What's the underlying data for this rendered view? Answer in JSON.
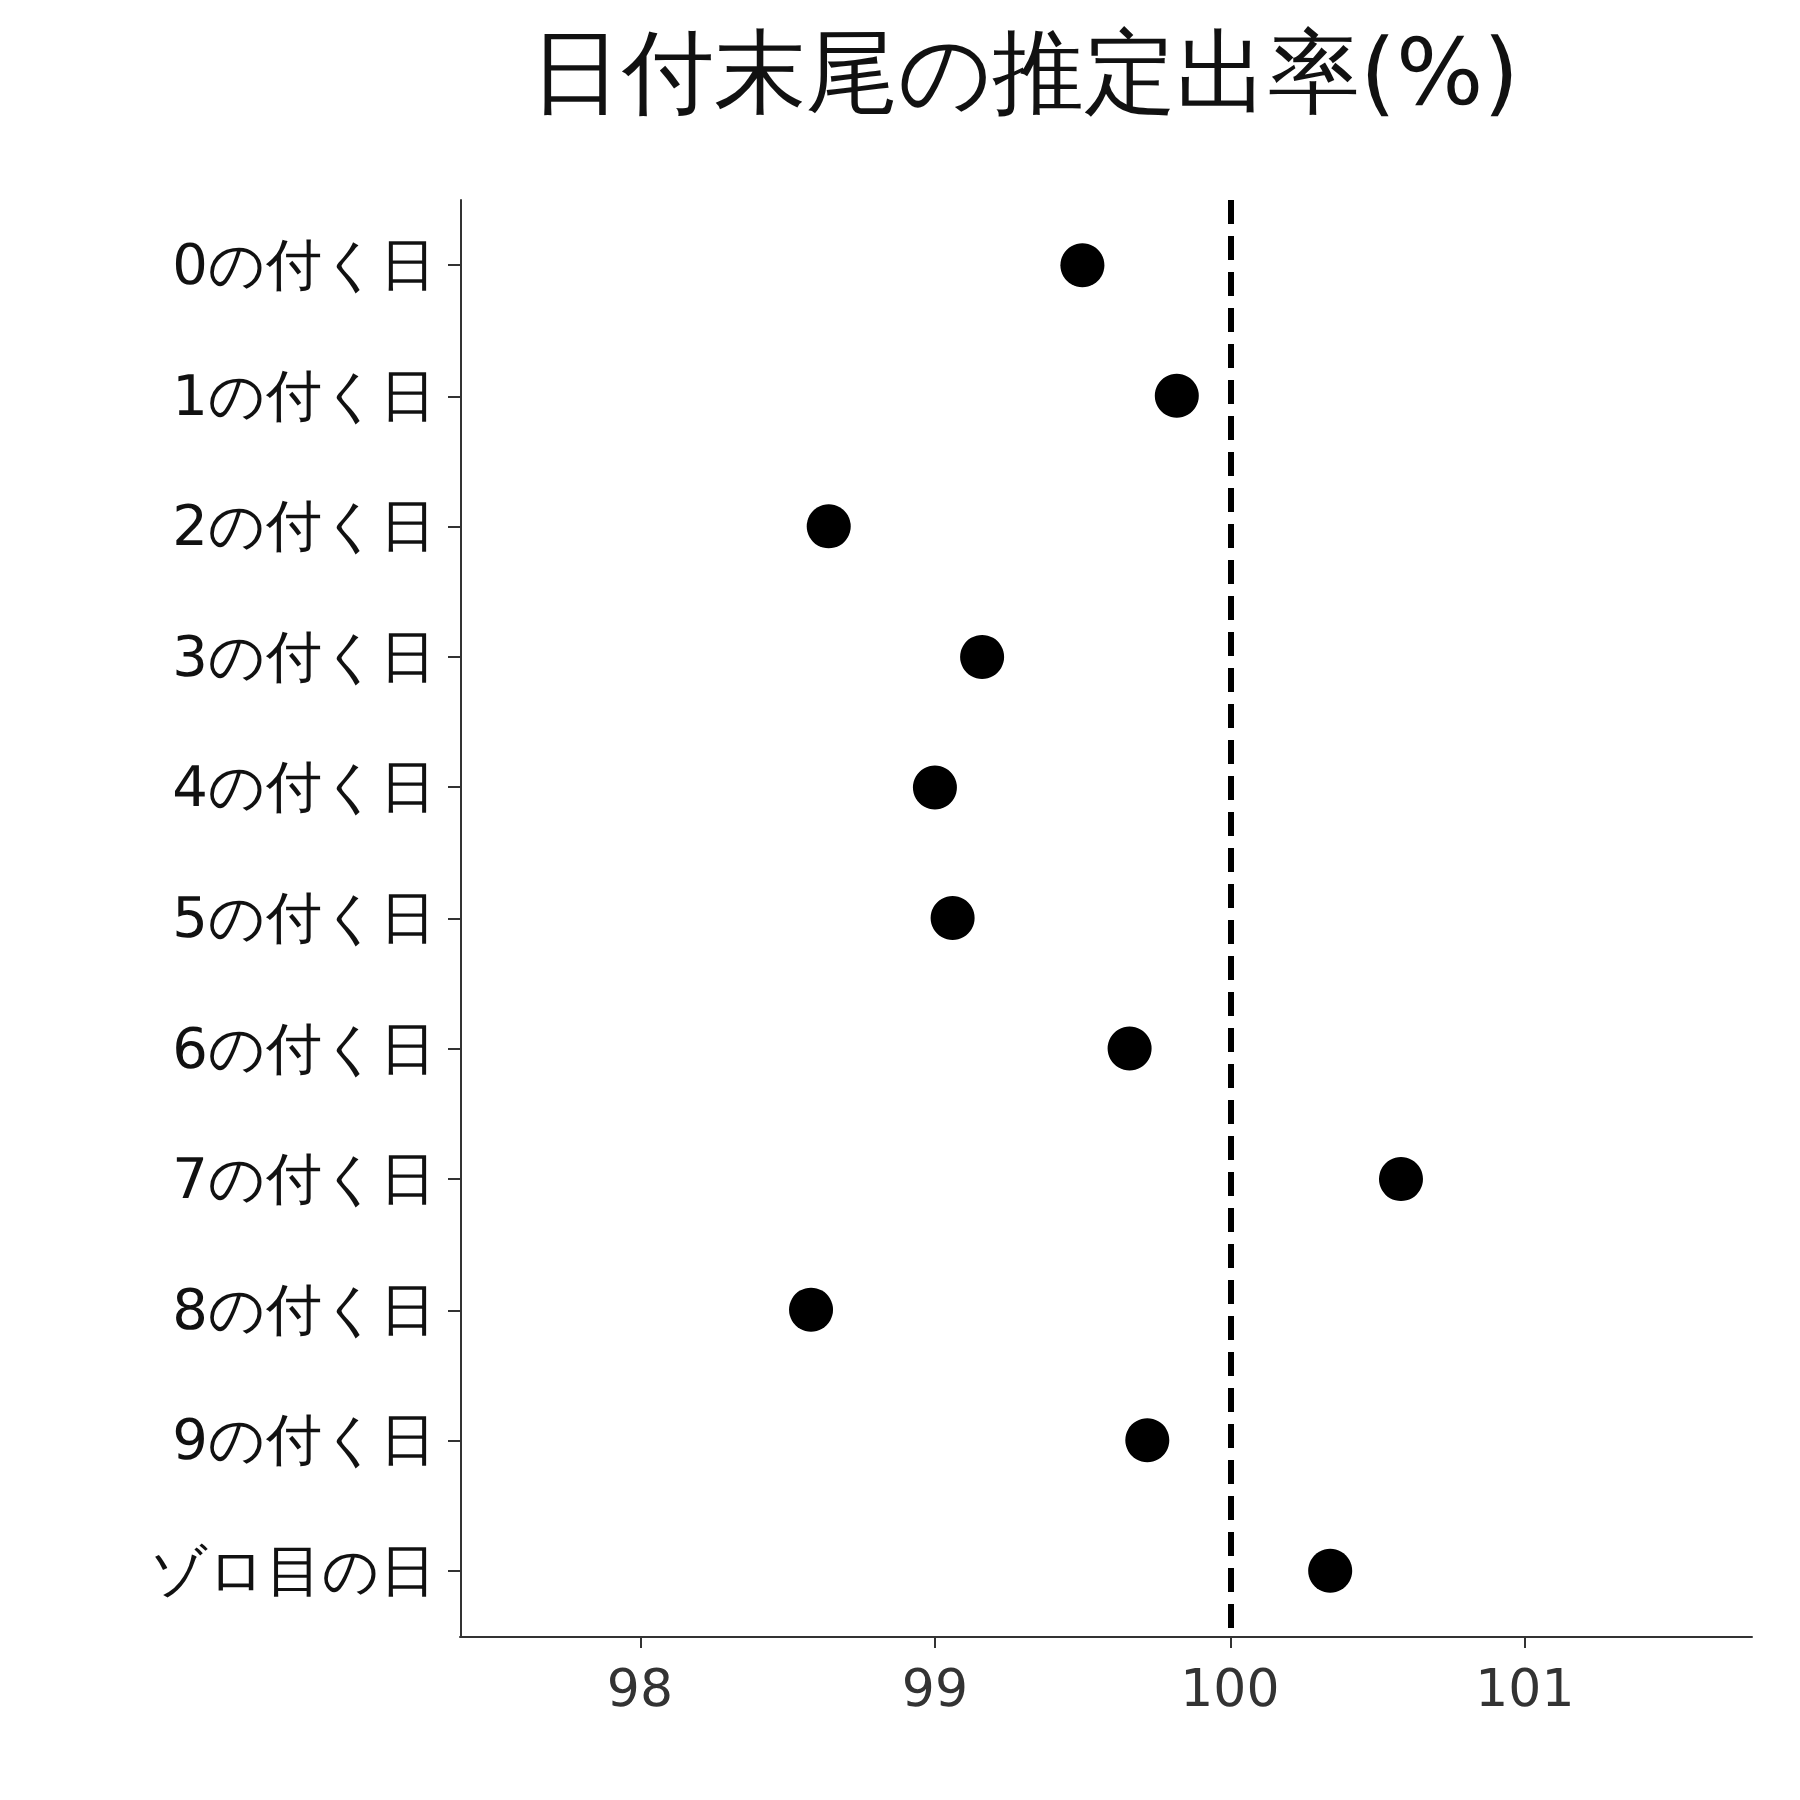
{
  "chart_data": {
    "type": "scatter",
    "orientation": "horizontal",
    "title": "日付末尾の推定出率(%)",
    "categories": [
      "0の付く日",
      "1の付く日",
      "2の付く日",
      "3の付く日",
      "4の付く日",
      "5の付く日",
      "6の付く日",
      "7の付く日",
      "8の付く日",
      "9の付く日",
      "ゾロ目の日"
    ],
    "values": [
      99.5,
      99.82,
      98.64,
      99.16,
      99.0,
      99.06,
      99.66,
      100.58,
      98.58,
      99.72,
      100.34
    ],
    "color": "#000000",
    "marker": "circle",
    "xlim": [
      97.39,
      101.77
    ],
    "xticks": [
      98,
      99,
      100,
      101
    ],
    "grid": false,
    "ref_lines": [
      {
        "axis": "x",
        "value": 100,
        "color": "#000000",
        "line_style": "dashed"
      }
    ]
  }
}
